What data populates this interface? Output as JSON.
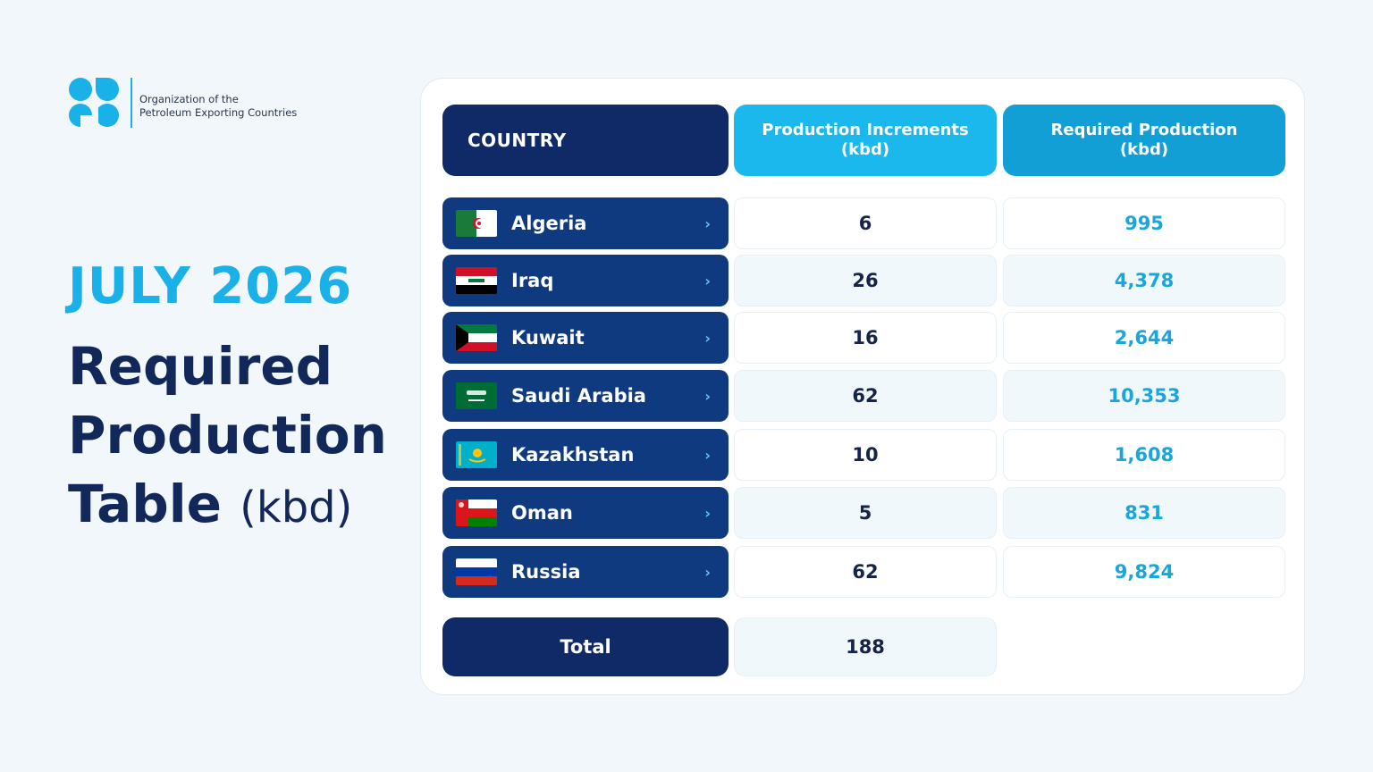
{
  "logo": {
    "line1": "Organization of the",
    "line2": "Petroleum Exporting Countries"
  },
  "heading": {
    "date": "JULY 2026",
    "title_line1": "Required",
    "title_line2": "Production",
    "title_line3": "Table",
    "unit": "(kbd)"
  },
  "table": {
    "headers": {
      "country": "COUNTRY",
      "increments_line1": "Production Increments",
      "increments_line2": "(kbd)",
      "required_line1": "Required Production",
      "required_line2": "(kbd)"
    },
    "rows": [
      {
        "country": "Algeria",
        "flag": "algeria-flag-icon",
        "increment": "6",
        "required": "995"
      },
      {
        "country": "Iraq",
        "flag": "iraq-flag-icon",
        "increment": "26",
        "required": "4,378"
      },
      {
        "country": "Kuwait",
        "flag": "kuwait-flag-icon",
        "increment": "16",
        "required": "2,644"
      },
      {
        "country": "Saudi Arabia",
        "flag": "saudi-arabia-flag-icon",
        "increment": "62",
        "required": "10,353"
      },
      {
        "country": "Kazakhstan",
        "flag": "kazakhstan-flag-icon",
        "increment": "10",
        "required": "1,608"
      },
      {
        "country": "Oman",
        "flag": "oman-flag-icon",
        "increment": "5",
        "required": "831"
      },
      {
        "country": "Russia",
        "flag": "russia-flag-icon",
        "increment": "62",
        "required": "9,824"
      }
    ],
    "chevron": "›",
    "total_label": "Total",
    "total_value": "188"
  },
  "colors": {
    "navy": "#0f2a66",
    "row_blue": "#0f3a80",
    "accent": "#1ab0e8",
    "header_light": "#1ab8ec",
    "header_mid": "#119fd6"
  }
}
